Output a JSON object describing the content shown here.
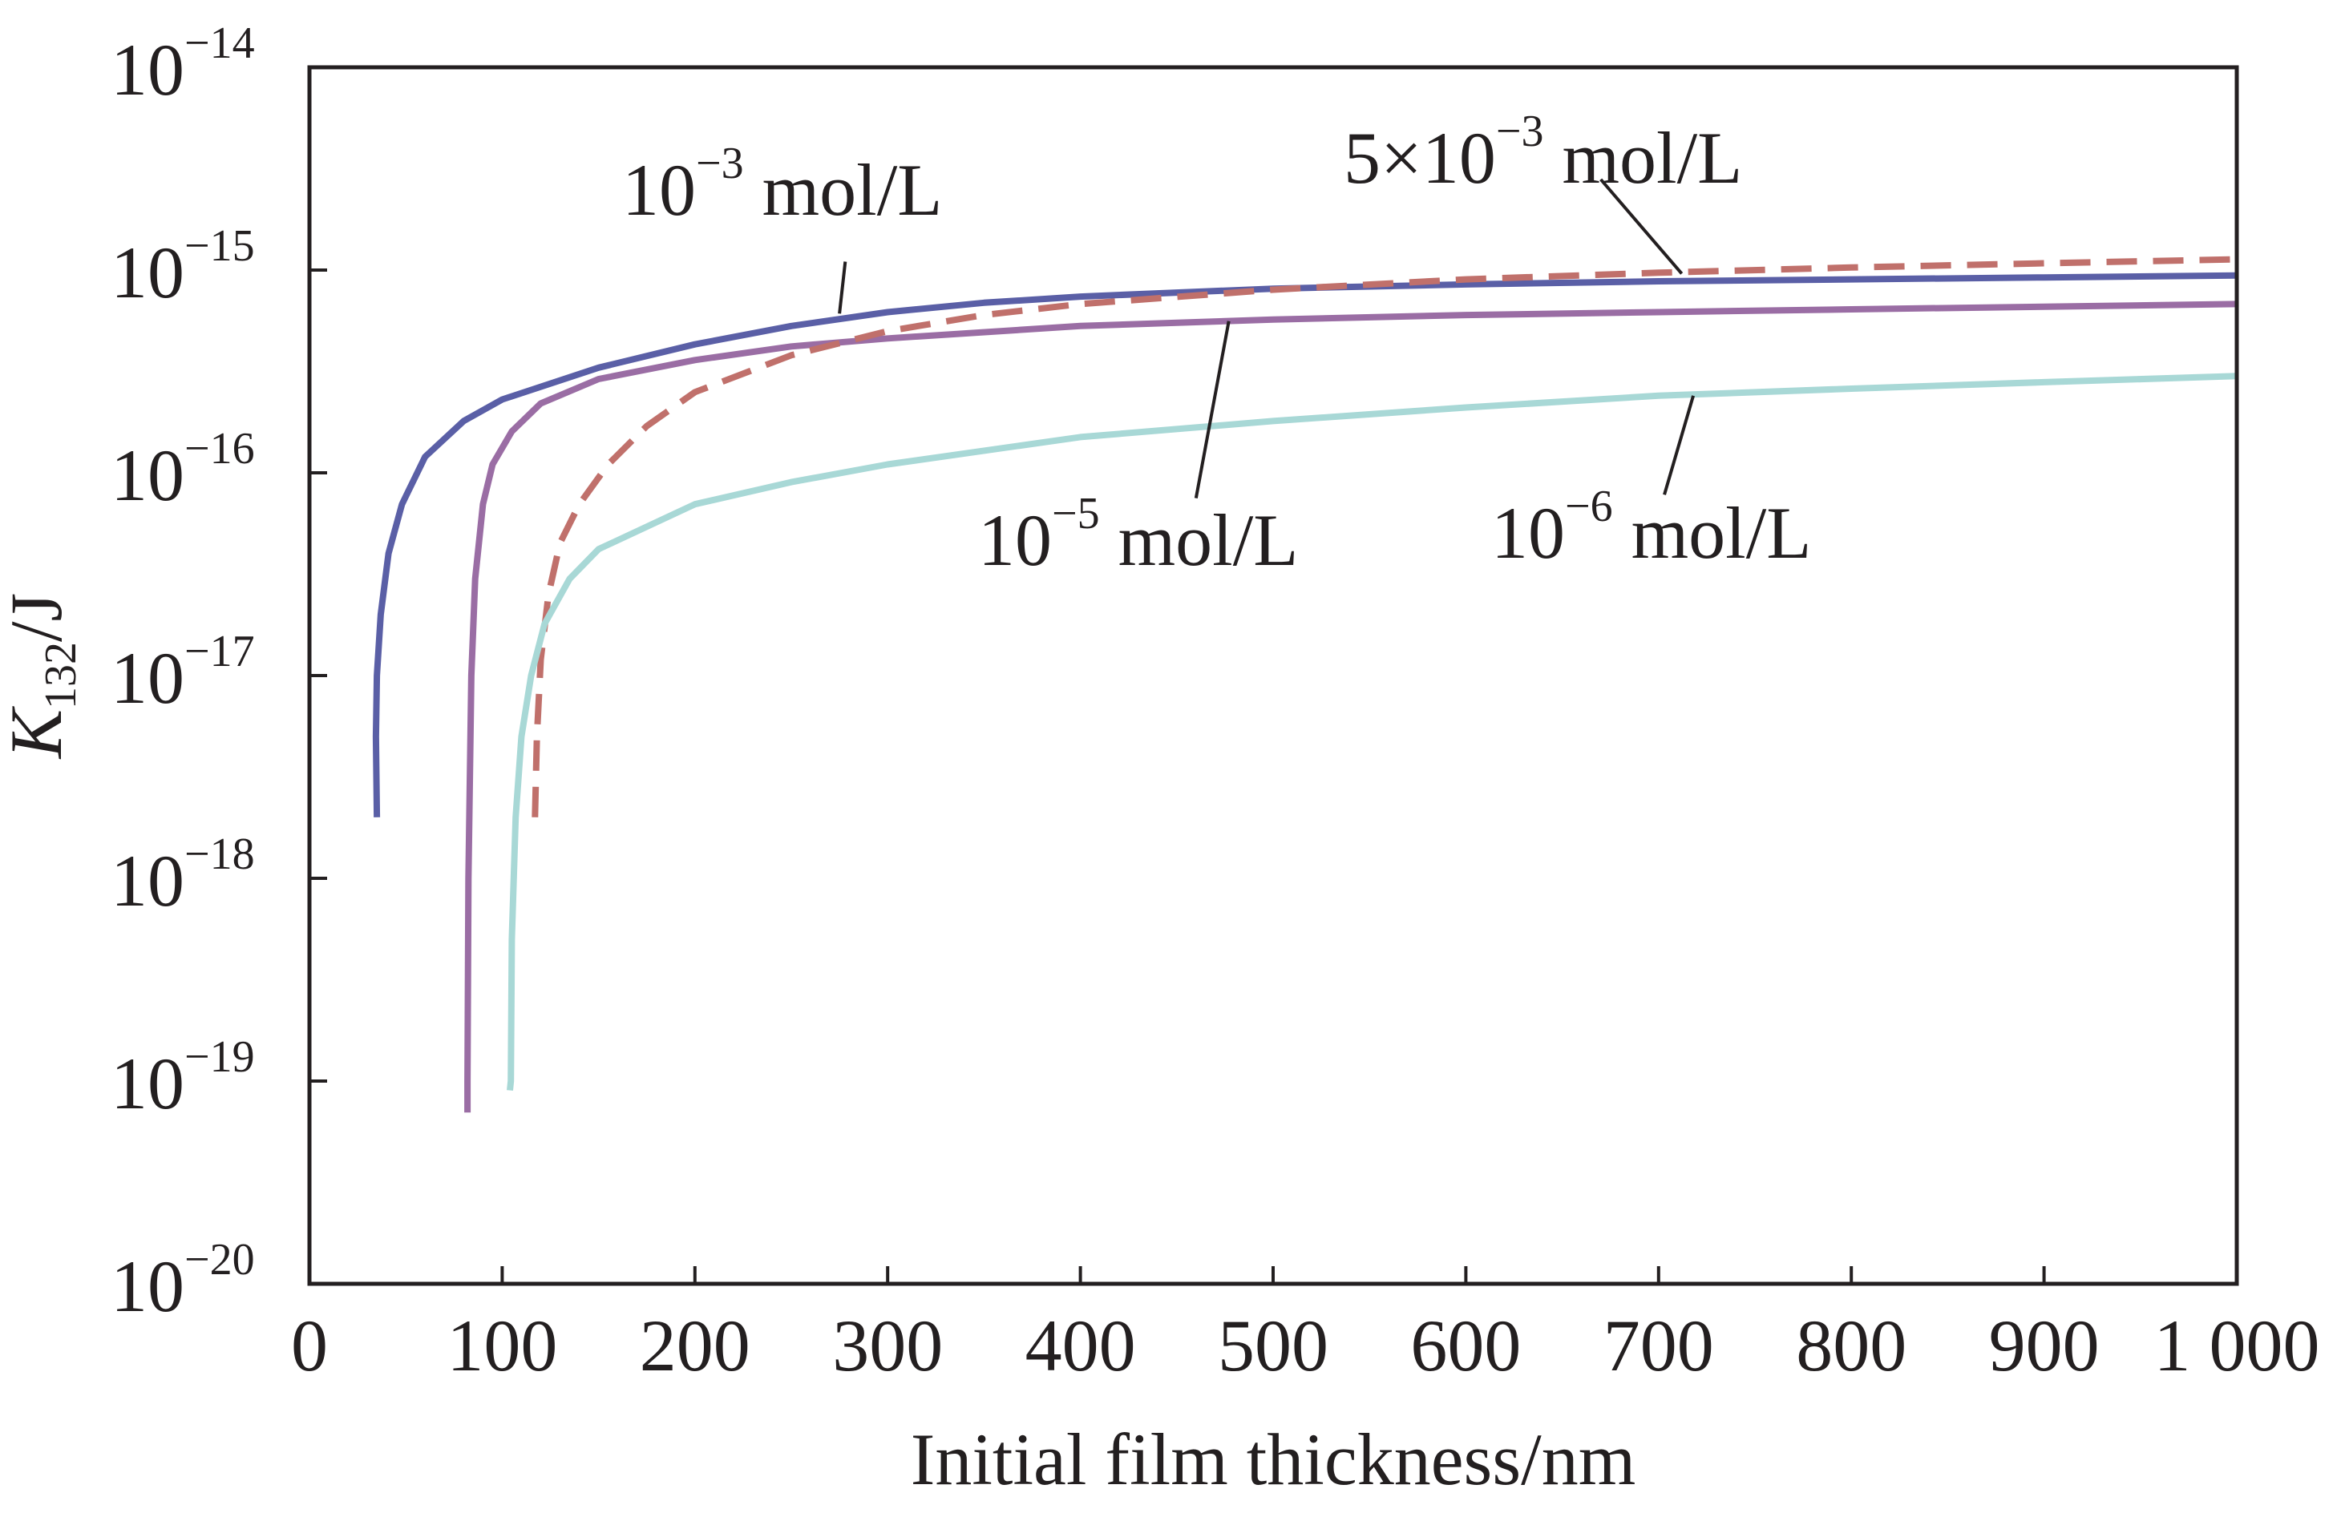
{
  "chart_data": {
    "type": "line",
    "xlabel": "Initial film thickness/nm",
    "ylabel": {
      "base": "K",
      "subscript": "132",
      "suffix": "/J"
    },
    "x_scale": "linear",
    "y_scale": "log",
    "xlim": [
      0,
      1000
    ],
    "ylim": [
      1e-20,
      1e-14
    ],
    "x_ticks": [
      0,
      100,
      200,
      300,
      400,
      500,
      600,
      700,
      800,
      900,
      1000
    ],
    "x_tick_labels": [
      "0",
      "100",
      "200",
      "300",
      "400",
      "500",
      "600",
      "700",
      "800",
      "900",
      "1 000"
    ],
    "y_ticks": [
      1e-20,
      1e-19,
      1e-18,
      1e-17,
      1e-16,
      1e-15,
      1e-14
    ],
    "y_tick_labels": [
      {
        "base": "10",
        "exp": "−20"
      },
      {
        "base": "10",
        "exp": "−19"
      },
      {
        "base": "10",
        "exp": "−18"
      },
      {
        "base": "10",
        "exp": "−17"
      },
      {
        "base": "10",
        "exp": "−16"
      },
      {
        "base": "10",
        "exp": "−15"
      },
      {
        "base": "10",
        "exp": "−14"
      }
    ],
    "grid": false,
    "legend": "none",
    "series": [
      {
        "name": "10−3 mol/L",
        "label": {
          "base": "10",
          "exp": "−3",
          "unit": "mol/L"
        },
        "color": "#5a5fa6",
        "dash": "solid",
        "points": [
          [
            35,
            2e-18
          ],
          [
            34.5,
            5e-18
          ],
          [
            35,
            1e-17
          ],
          [
            37,
            2e-17
          ],
          [
            41,
            4e-17
          ],
          [
            48,
            7e-17
          ],
          [
            60,
            1.2e-16
          ],
          [
            80,
            1.8e-16
          ],
          [
            100,
            2.3e-16
          ],
          [
            150,
            3.3e-16
          ],
          [
            200,
            4.3e-16
          ],
          [
            250,
            5.3e-16
          ],
          [
            300,
            6.2e-16
          ],
          [
            350,
            6.9e-16
          ],
          [
            400,
            7.4e-16
          ],
          [
            500,
            8.1e-16
          ],
          [
            600,
            8.5e-16
          ],
          [
            700,
            8.8e-16
          ],
          [
            800,
            9e-16
          ],
          [
            900,
            9.2e-16
          ],
          [
            1000,
            9.4e-16
          ]
        ]
      },
      {
        "name": "10−5 mol/L",
        "label": {
          "base": "10",
          "exp": "−5",
          "unit": "mol/L"
        },
        "color": "#9a6da4",
        "dash": "solid",
        "points": [
          [
            82,
            7e-20
          ],
          [
            82,
            1e-19
          ],
          [
            82.5,
            1e-18
          ],
          [
            84,
            1e-17
          ],
          [
            86,
            3e-17
          ],
          [
            90,
            7e-17
          ],
          [
            95,
            1.1e-16
          ],
          [
            105,
            1.6e-16
          ],
          [
            120,
            2.2e-16
          ],
          [
            150,
            2.9e-16
          ],
          [
            200,
            3.6e-16
          ],
          [
            250,
            4.2e-16
          ],
          [
            300,
            4.6e-16
          ],
          [
            400,
            5.3e-16
          ],
          [
            500,
            5.7e-16
          ],
          [
            600,
            6e-16
          ],
          [
            700,
            6.2e-16
          ],
          [
            800,
            6.4e-16
          ],
          [
            900,
            6.6e-16
          ],
          [
            1000,
            6.8e-16
          ]
        ]
      },
      {
        "name": "5×10−3 mol/L",
        "label": {
          "base": "5×10",
          "exp": "−3",
          "unit": "mol/L"
        },
        "color": "#c0706b",
        "dash": "dashed",
        "points": [
          [
            117,
            2e-18
          ],
          [
            118,
            5e-18
          ],
          [
            120,
            1.2e-17
          ],
          [
            124,
            2.5e-17
          ],
          [
            130,
            4.5e-17
          ],
          [
            140,
            7e-17
          ],
          [
            155,
            1.1e-16
          ],
          [
            175,
            1.7e-16
          ],
          [
            200,
            2.5e-16
          ],
          [
            250,
            3.8e-16
          ],
          [
            300,
            5e-16
          ],
          [
            350,
            6e-16
          ],
          [
            400,
            6.8e-16
          ],
          [
            500,
            8e-16
          ],
          [
            600,
            9e-16
          ],
          [
            700,
            9.7e-16
          ],
          [
            800,
            1.03e-15
          ],
          [
            900,
            1.08e-15
          ],
          [
            1000,
            1.13e-15
          ]
        ]
      },
      {
        "name": "10−6 mol/L",
        "label": {
          "base": "10",
          "exp": "−6",
          "unit": "mol/L"
        },
        "color": "#a8d8d6",
        "dash": "solid",
        "points": [
          [
            104,
            9e-20
          ],
          [
            104.5,
            1e-19
          ],
          [
            105,
            5e-19
          ],
          [
            107,
            2e-18
          ],
          [
            110,
            5e-18
          ],
          [
            115,
            1e-17
          ],
          [
            122,
            1.8e-17
          ],
          [
            135,
            3e-17
          ],
          [
            150,
            4.2e-17
          ],
          [
            200,
            7e-17
          ],
          [
            250,
            9e-17
          ],
          [
            300,
            1.1e-16
          ],
          [
            400,
            1.5e-16
          ],
          [
            500,
            1.8e-16
          ],
          [
            600,
            2.1e-16
          ],
          [
            700,
            2.4e-16
          ],
          [
            800,
            2.6e-16
          ],
          [
            900,
            2.8e-16
          ],
          [
            1000,
            3e-16
          ]
        ]
      }
    ],
    "annotations": [
      {
        "series": "10−3 mol/L",
        "leader_from": [
          275,
          6.1e-16
        ],
        "leader_to": [
          278,
          1.1e-15
        ]
      },
      {
        "series": "5×10−3 mol/L",
        "leader_from": [
          712,
          9.6e-16
        ],
        "leader_to": [
          670,
          2.8e-15
        ]
      },
      {
        "series": "10−5 mol/L",
        "leader_from": [
          477,
          5.6e-16
        ],
        "leader_to": [
          460,
          7.5e-17
        ]
      },
      {
        "series": "10−6 mol/L",
        "leader_from": [
          718,
          2.4e-16
        ],
        "leader_to": [
          703,
          7.8e-17
        ]
      }
    ]
  }
}
